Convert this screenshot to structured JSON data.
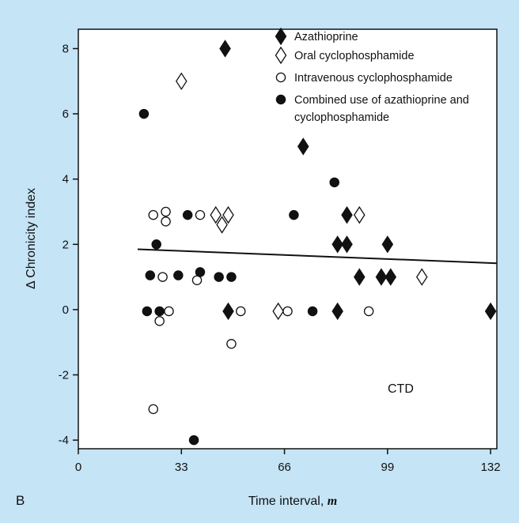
{
  "panel_label": "B",
  "annotation": "CTD",
  "colors": {
    "background": "#c5e4f6",
    "plot_area": "#ffffff",
    "ink": "#111111"
  },
  "chart_data": {
    "type": "scatter",
    "title": "",
    "xlabel": "Time interval, m",
    "xlabel_main": "Time interval, ",
    "xlabel_var": "m",
    "ylabel": "Δ Chronicity index",
    "xlim": [
      0,
      134
    ],
    "ylim": [
      -4.6,
      8.6
    ],
    "xticks": [
      0,
      33,
      66,
      99,
      132
    ],
    "yticks": [
      8,
      6,
      4,
      2,
      0,
      -2,
      -4
    ],
    "grid": false,
    "legend_position": "top-right",
    "series": [
      {
        "name": "Azathioprine",
        "marker": "filled-diamond",
        "points": [
          [
            47,
            8
          ],
          [
            72,
            5
          ],
          [
            83,
            2
          ],
          [
            86,
            2
          ],
          [
            86,
            2.9
          ],
          [
            99,
            2
          ],
          [
            90,
            1
          ],
          [
            97,
            1
          ],
          [
            100,
            1
          ],
          [
            48,
            -0.05
          ],
          [
            83,
            -0.05
          ],
          [
            132,
            -0.05
          ]
        ]
      },
      {
        "name": "Oral cyclophosphamide",
        "marker": "open-diamond",
        "points": [
          [
            33,
            7
          ],
          [
            44,
            2.9
          ],
          [
            46,
            2.6
          ],
          [
            48,
            2.9
          ],
          [
            90,
            2.9
          ],
          [
            110,
            1
          ],
          [
            64,
            -0.05
          ]
        ]
      },
      {
        "name": "Intravenous cyclophosphamide",
        "marker": "open-circle",
        "points": [
          [
            24,
            2.9
          ],
          [
            28,
            3.0
          ],
          [
            28,
            2.7
          ],
          [
            39,
            2.9
          ],
          [
            27,
            1
          ],
          [
            38,
            0.9
          ],
          [
            29,
            -0.05
          ],
          [
            26,
            -0.35
          ],
          [
            52,
            -0.05
          ],
          [
            67,
            -0.05
          ],
          [
            93,
            -0.05
          ],
          [
            49,
            -1.05
          ],
          [
            24,
            -3.05
          ]
        ]
      },
      {
        "name": "Combined use of azathioprine and cyclophosphamide",
        "name_line1": "Combined use of azathioprine and",
        "name_line2": "cyclophosphamide",
        "marker": "filled-circle",
        "points": [
          [
            21,
            6
          ],
          [
            35,
            2.9
          ],
          [
            69,
            2.9
          ],
          [
            82,
            3.9
          ],
          [
            25,
            2
          ],
          [
            23,
            1.05
          ],
          [
            32,
            1.05
          ],
          [
            39,
            1.15
          ],
          [
            45,
            1
          ],
          [
            49,
            1
          ],
          [
            22,
            -0.05
          ],
          [
            26,
            -0.05
          ],
          [
            75,
            -0.05
          ],
          [
            37,
            -4
          ]
        ]
      }
    ],
    "trend_line": {
      "x": [
        19,
        134
      ],
      "y": [
        1.85,
        1.42
      ]
    }
  }
}
